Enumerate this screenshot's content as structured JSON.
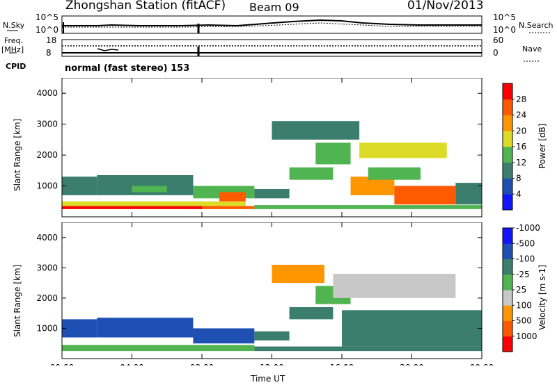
{
  "header": {
    "station": "Zhongshan Station (fitACF)",
    "beam": "Beam 09",
    "date": "01/Nov/2013"
  },
  "status_panels": {
    "nsky_label": "N.Sky",
    "nsky_ticks": [
      "10^5",
      "10^0"
    ],
    "nsearch_label": "N.Search",
    "nsearch_ticks": [
      "10^5",
      "10^0"
    ],
    "freq_label": "Freq.",
    "freq_unit": "[MHz]",
    "freq_ticks": [
      "18",
      "8"
    ],
    "nave_label": "Nave",
    "nave_ticks": [
      "60",
      "0"
    ],
    "cpid_label": "CPID",
    "cpid_value": "normal (fast stereo) 153"
  },
  "x_axis": {
    "title": "Time UT",
    "ticks": [
      "00:00",
      "04:00",
      "08:00",
      "12:00",
      "16:00",
      "20:00",
      "00:00"
    ]
  },
  "colors": {
    "power_scale": [
      "#1414ff",
      "#1e50b4",
      "#3c7e6e",
      "#50b450",
      "#dcdc28",
      "#ff9600",
      "#ff5a00",
      "#ff0000"
    ],
    "velocity_scale": [
      "#ff0000",
      "#ff5a00",
      "#ff9600",
      "#c8c8c8",
      "#c8c8c8",
      "#50b450",
      "#3c7e6e",
      "#1e50b4",
      "#1414ff"
    ]
  },
  "chart_data": [
    {
      "type": "heatmap",
      "title": "",
      "xlabel": "Time UT",
      "ylabel": "Slant Range [km]",
      "xlim": [
        0,
        24
      ],
      "ylim": [
        0,
        4500
      ],
      "y_ticks": [
        "1000",
        "2000",
        "3000",
        "4000"
      ],
      "colorbar_label": "Power [dB]",
      "colorbar_ticks": [
        "4",
        "8",
        "12",
        "16",
        "20",
        "24",
        "28"
      ],
      "colorbar_range": [
        0,
        30
      ],
      "cells": [
        {
          "t0": 0.0,
          "t1": 8.0,
          "r0": 250,
          "r1": 350,
          "value": 28
        },
        {
          "t0": 8.0,
          "t1": 11.0,
          "r0": 250,
          "r1": 350,
          "value": 26
        },
        {
          "t0": 11.0,
          "t1": 24.0,
          "r0": 250,
          "r1": 380,
          "value": 12
        },
        {
          "t0": 0.0,
          "t1": 10.5,
          "r0": 350,
          "r1": 500,
          "value": 18
        },
        {
          "t0": 0.0,
          "t1": 2.0,
          "r0": 700,
          "r1": 1300,
          "value": 8
        },
        {
          "t0": 2.0,
          "t1": 7.5,
          "r0": 700,
          "r1": 1350,
          "value": 10
        },
        {
          "t0": 4.0,
          "t1": 6.0,
          "r0": 800,
          "r1": 1000,
          "value": 14
        },
        {
          "t0": 7.5,
          "t1": 11.0,
          "r0": 600,
          "r1": 1000,
          "value": 14
        },
        {
          "t0": 9.0,
          "t1": 10.5,
          "r0": 500,
          "r1": 800,
          "value": 24
        },
        {
          "t0": 11.0,
          "t1": 13.0,
          "r0": 600,
          "r1": 900,
          "value": 10
        },
        {
          "t0": 13.0,
          "t1": 15.5,
          "r0": 1200,
          "r1": 1600,
          "value": 12
        },
        {
          "t0": 14.5,
          "t1": 16.5,
          "r0": 1700,
          "r1": 2400,
          "value": 14
        },
        {
          "t0": 12.0,
          "t1": 17.0,
          "r0": 2500,
          "r1": 3100,
          "value": 8
        },
        {
          "t0": 17.0,
          "t1": 22.0,
          "r0": 1900,
          "r1": 2400,
          "value": 16
        },
        {
          "t0": 16.5,
          "t1": 19.0,
          "r0": 700,
          "r1": 1300,
          "value": 22
        },
        {
          "t0": 19.0,
          "t1": 22.5,
          "r0": 400,
          "r1": 1000,
          "value": 24
        },
        {
          "t0": 17.5,
          "t1": 20.5,
          "r0": 1200,
          "r1": 1600,
          "value": 12
        },
        {
          "t0": 22.5,
          "t1": 24.0,
          "r0": 400,
          "r1": 1100,
          "value": 10
        }
      ]
    },
    {
      "type": "heatmap",
      "title": "",
      "xlabel": "Time UT",
      "ylabel": "Slant Range [km]",
      "xlim": [
        0,
        24
      ],
      "ylim": [
        0,
        4500
      ],
      "y_ticks": [
        "1000",
        "2000",
        "3000",
        "4000"
      ],
      "colorbar_label": "Velocity [m s-1]",
      "colorbar_ticks": [
        "1000",
        "500",
        "100",
        "25",
        "-25",
        "-100",
        "-500",
        "-1000"
      ],
      "cells": [
        {
          "t0": 0.0,
          "t1": 11.0,
          "r0": 250,
          "r1": 450,
          "value": 100
        },
        {
          "t0": 11.0,
          "t1": 24.0,
          "r0": 250,
          "r1": 400,
          "value": 200
        },
        {
          "t0": 0.0,
          "t1": 2.0,
          "r0": 700,
          "r1": 1300,
          "value": 700
        },
        {
          "t0": 2.0,
          "t1": 7.5,
          "r0": 700,
          "r1": 1350,
          "value": 600
        },
        {
          "t0": 7.5,
          "t1": 11.0,
          "r0": 500,
          "r1": 1000,
          "value": 800
        },
        {
          "t0": 11.0,
          "t1": 13.0,
          "r0": 600,
          "r1": 900,
          "value": 300
        },
        {
          "t0": 12.0,
          "t1": 15.0,
          "r0": 2500,
          "r1": 3100,
          "value": -300
        },
        {
          "t0": 13.0,
          "t1": 15.5,
          "r0": 1300,
          "r1": 1700,
          "value": 150
        },
        {
          "t0": 14.5,
          "t1": 16.5,
          "r0": 1800,
          "r1": 2400,
          "value": 60
        },
        {
          "t0": 15.5,
          "t1": 22.5,
          "r0": 2000,
          "r1": 2800,
          "value": 0
        },
        {
          "t0": 16.0,
          "t1": 24.0,
          "r0": 400,
          "r1": 1600,
          "value": 250
        }
      ]
    }
  ]
}
